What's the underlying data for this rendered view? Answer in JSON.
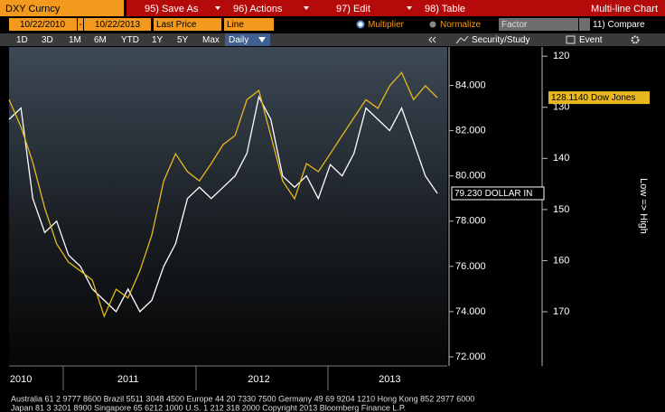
{
  "ui": {
    "security": "DXY Curncy",
    "menu": [
      "95) Save As",
      "96) Actions",
      "97) Edit",
      "98) Table"
    ],
    "chart_kind": "Multi-line Chart",
    "start_date": "10/22/2010",
    "date_sep": "-",
    "end_date": "10/22/2013",
    "field": "Last Price",
    "style": "Line",
    "options": [
      "Multiplier",
      "Normalize"
    ],
    "factor": "Factor",
    "compare": "11) Compare",
    "ranges": [
      "1D",
      "3D",
      "1M",
      "6M",
      "YTD",
      "1Y",
      "5Y",
      "Max"
    ],
    "frequency": "Daily",
    "tools": [
      "Security/Study",
      "Event"
    ],
    "footer": [
      "Australia 61 2 9777 8600 Brazil 5511 3048 4500 Europe 44 20 7330 7500 Germany 49 69 9204 1210 Hong Kong 852 2977 6000",
      "Japan 81 3 3201 8900          Singapore 65 6212 1000          U.S. 1 212 318 2000          Copyright 2013 Bloomberg Finance L.P."
    ]
  },
  "chart_data": {
    "type": "line",
    "categories": [
      null,
      "2010",
      null,
      null,
      null,
      null,
      null,
      null,
      null,
      null,
      "2011",
      null,
      null,
      null,
      null,
      null,
      null,
      null,
      null,
      null,
      null,
      "2012",
      null,
      null,
      null,
      null,
      null,
      null,
      null,
      null,
      null,
      null,
      "2013",
      null,
      null,
      null,
      null
    ],
    "series": [
      {
        "name": "DOLLAR IN",
        "color": "#ffffff",
        "end_label": "79.230",
        "values": [
          82.5,
          83,
          79,
          77.5,
          78,
          76.5,
          76,
          75,
          74.5,
          74,
          75,
          74,
          74.5,
          76,
          77,
          79,
          79.5,
          79,
          79.5,
          80,
          81,
          83.5,
          82.5,
          80,
          79.5,
          80,
          79,
          80.5,
          80,
          81,
          83,
          82.5,
          82,
          83,
          81.5,
          80,
          79.23
        ]
      },
      {
        "name": "Dow Jones",
        "color": "#e8b820",
        "axis": "y2",
        "end_label": "128.1140",
        "values": [
          128.5,
          133.8,
          140.8,
          149.7,
          156.7,
          160.3,
          162,
          163.8,
          170.9,
          165.6,
          167.3,
          162,
          155,
          144.4,
          139.1,
          142.6,
          144.4,
          141,
          137.3,
          135.5,
          128.5,
          126.7,
          135.5,
          144.4,
          147.9,
          141,
          142.6,
          139.1,
          135.5,
          132,
          128.5,
          130.2,
          125.8,
          123.2,
          128.5,
          125.8,
          128.114
        ]
      }
    ],
    "ylim": [
      71.6,
      85.7
    ],
    "yticks": [
      {
        "value": 72,
        "label": "72.000"
      },
      {
        "value": 74,
        "label": "74.000"
      },
      {
        "value": 76,
        "label": "76.000"
      },
      {
        "value": 78,
        "label": "78.000"
      },
      {
        "value": 80,
        "label": "80.000"
      },
      {
        "value": 82,
        "label": "82.000"
      },
      {
        "value": 84,
        "label": "84.000"
      }
    ],
    "y2lim": [
      118.2,
      180.6
    ],
    "y2_inverted": true,
    "y2ticks": [
      120,
      130,
      140,
      150,
      160,
      170
    ],
    "y2label": "Low => High"
  }
}
